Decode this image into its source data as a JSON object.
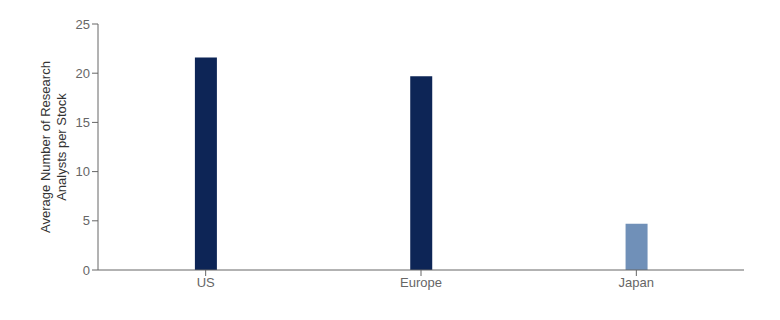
{
  "chart_data": {
    "type": "bar",
    "categories": [
      "US",
      "Europe",
      "Japan"
    ],
    "values": [
      21.6,
      19.7,
      4.7
    ],
    "colors": [
      "#0d2556",
      "#0d2556",
      "#7090b8"
    ],
    "ylabel": "Average Number of Research\nAnalysts per Stock",
    "ylim": [
      0,
      25
    ],
    "yticks": [
      0,
      5,
      10,
      15,
      20,
      25
    ],
    "grid": false
  }
}
